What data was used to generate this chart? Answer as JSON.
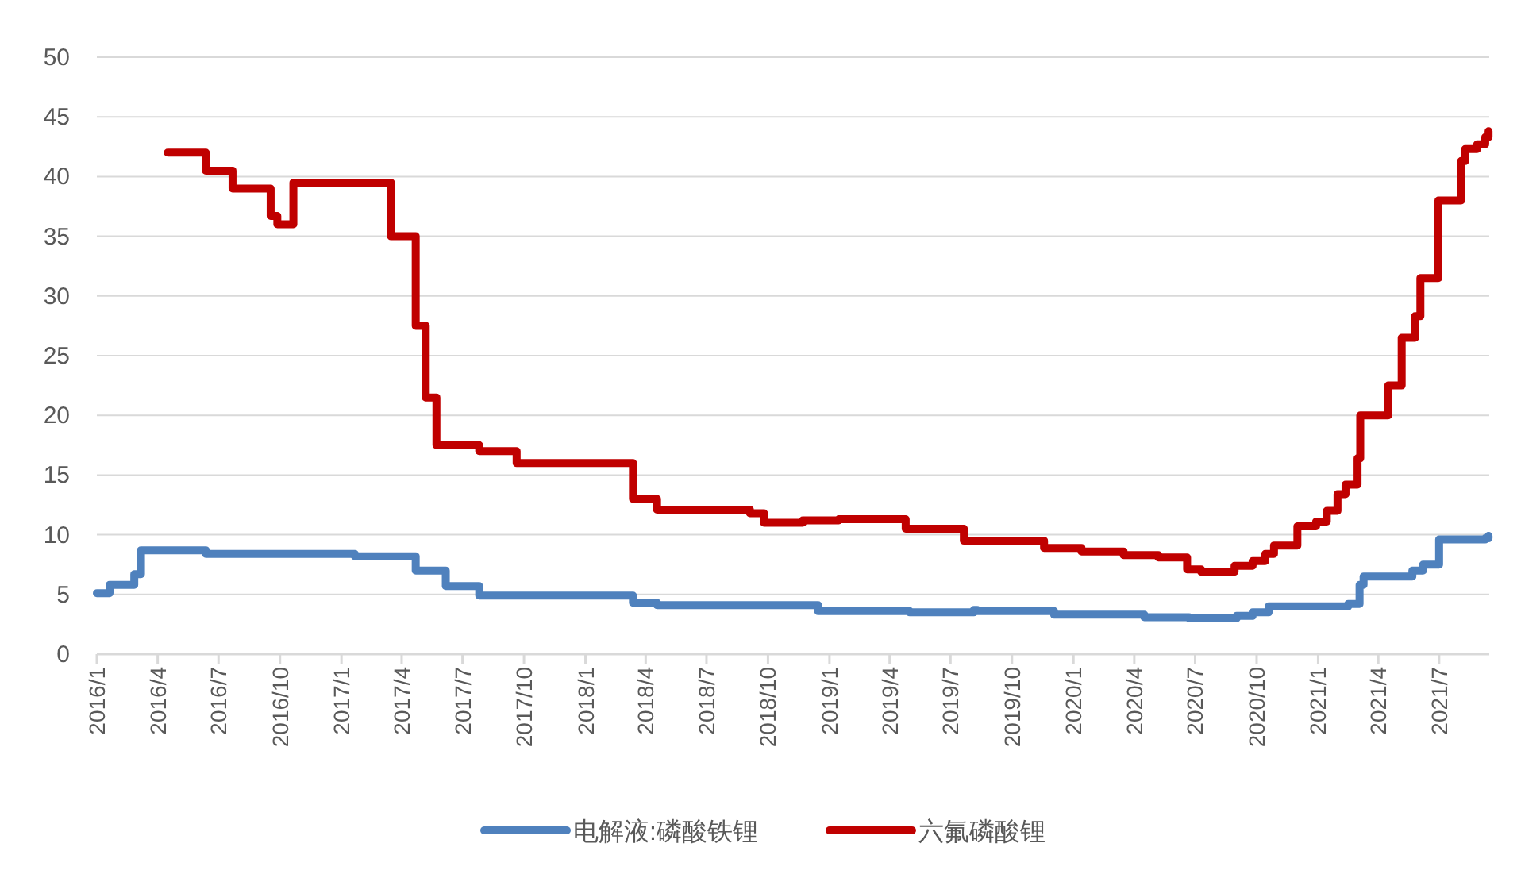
{
  "chart_data": {
    "type": "step",
    "legend": "bottom",
    "grid": "y",
    "line_style": "solid",
    "marker": "none",
    "xlim": [
      "2016-01-01",
      "2021-09-14"
    ],
    "xticks": [
      {
        "value": "2016-01-01",
        "label": "2016/1"
      },
      {
        "value": "2016-04-01",
        "label": "2016/4"
      },
      {
        "value": "2016-07-01",
        "label": "2016/7"
      },
      {
        "value": "2016-10-01",
        "label": "2016/10"
      },
      {
        "value": "2017-01-01",
        "label": "2017/1"
      },
      {
        "value": "2017-04-01",
        "label": "2017/4"
      },
      {
        "value": "2017-07-01",
        "label": "2017/7"
      },
      {
        "value": "2017-10-01",
        "label": "2017/10"
      },
      {
        "value": "2018-01-01",
        "label": "2018/1"
      },
      {
        "value": "2018-04-01",
        "label": "2018/4"
      },
      {
        "value": "2018-07-01",
        "label": "2018/7"
      },
      {
        "value": "2018-10-01",
        "label": "2018/10"
      },
      {
        "value": "2019-01-01",
        "label": "2019/1"
      },
      {
        "value": "2019-04-01",
        "label": "2019/4"
      },
      {
        "value": "2019-07-01",
        "label": "2019/7"
      },
      {
        "value": "2019-10-01",
        "label": "2019/10"
      },
      {
        "value": "2020-01-01",
        "label": "2020/1"
      },
      {
        "value": "2020-04-01",
        "label": "2020/4"
      },
      {
        "value": "2020-07-01",
        "label": "2020/7"
      },
      {
        "value": "2020-10-01",
        "label": "2020/10"
      },
      {
        "value": "2021-01-01",
        "label": "2021/1"
      },
      {
        "value": "2021-04-01",
        "label": "2021/4"
      },
      {
        "value": "2021-07-01",
        "label": "2021/7"
      }
    ],
    "ylim": [
      0,
      50
    ],
    "yticks": [
      0,
      5,
      10,
      15,
      20,
      25,
      30,
      35,
      40,
      45,
      50
    ],
    "series": [
      {
        "name": "电解液:磷酸铁锂",
        "color": "#4f81bd",
        "x": [
          "2016-01-01",
          "2016-01-20",
          "2016-02-26",
          "2016-03-07",
          "2016-06-12",
          "2017-01-21",
          "2017-04-22",
          "2017-06-06",
          "2017-07-26",
          "2018-03-13",
          "2018-04-18",
          "2018-12-15",
          "2019-05-01",
          "2019-08-05",
          "2019-08-10",
          "2019-12-03",
          "2020-04-16",
          "2020-06-22",
          "2020-09-01",
          "2020-09-25",
          "2020-10-19",
          "2021-02-15",
          "2021-03-04",
          "2021-03-10",
          "2021-05-22",
          "2021-06-07",
          "2021-07-01",
          "2021-09-08",
          "2021-09-13"
        ],
        "values": [
          5.1,
          5.8,
          6.7,
          8.7,
          8.4,
          8.2,
          7.0,
          5.7,
          4.9,
          4.3,
          4.1,
          3.6,
          3.5,
          3.7,
          3.6,
          3.3,
          3.1,
          3.0,
          3.2,
          3.5,
          4.0,
          4.2,
          5.8,
          6.5,
          7.0,
          7.5,
          9.6,
          9.7,
          9.9
        ]
      },
      {
        "name": "六氟磷酸锂",
        "color": "#c00000",
        "x": [
          "2016-04-16",
          "2016-06-12",
          "2016-07-22",
          "2016-09-17",
          "2016-09-27",
          "2016-10-21",
          "2017-03-16",
          "2017-04-22",
          "2017-05-07",
          "2017-05-23",
          "2017-07-26",
          "2017-09-20",
          "2018-03-13",
          "2018-04-18",
          "2018-09-04",
          "2018-09-25",
          "2018-11-22",
          "2019-01-15",
          "2019-04-25",
          "2019-07-21",
          "2019-11-18",
          "2020-01-13",
          "2020-03-16",
          "2020-05-07",
          "2020-06-19",
          "2020-07-10",
          "2020-08-29",
          "2020-09-25",
          "2020-10-14",
          "2020-10-27",
          "2020-12-01",
          "2020-12-29",
          "2021-01-14",
          "2021-01-30",
          "2021-02-11",
          "2021-03-01",
          "2021-03-05",
          "2021-04-16",
          "2021-05-06",
          "2021-05-26",
          "2021-06-03",
          "2021-06-30",
          "2021-08-03",
          "2021-08-09",
          "2021-08-27",
          "2021-09-08",
          "2021-09-13"
        ],
        "values": [
          42.0,
          40.5,
          39.0,
          36.7,
          36.0,
          39.5,
          35.0,
          27.5,
          21.5,
          17.5,
          17.0,
          16.0,
          13.0,
          12.1,
          11.8,
          11.0,
          11.2,
          11.3,
          10.5,
          9.5,
          8.9,
          8.6,
          8.3,
          8.1,
          7.1,
          6.9,
          7.4,
          7.8,
          8.4,
          9.1,
          10.7,
          11.1,
          12.0,
          13.4,
          14.2,
          16.4,
          20.0,
          22.5,
          26.5,
          28.3,
          31.5,
          38.0,
          41.3,
          42.3,
          42.7,
          43.3,
          43.8
        ]
      }
    ]
  }
}
